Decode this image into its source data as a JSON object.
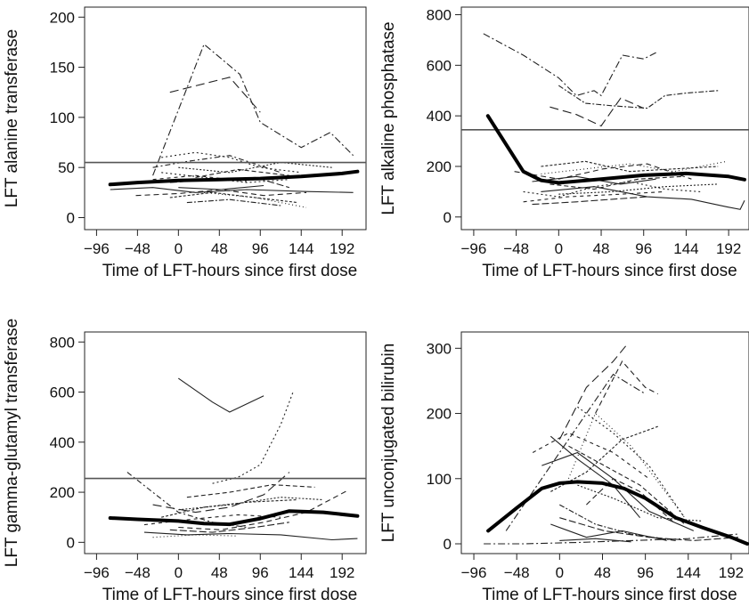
{
  "chart_data": [
    {
      "type": "line",
      "xlabel": "Time of LFT-hours since first dose",
      "ylabel": "LFT alanine transferase",
      "xlim": [
        -110,
        220
      ],
      "ylim": [
        -12,
        210
      ],
      "xticks": [
        -96,
        -48,
        0,
        48,
        96,
        144,
        192
      ],
      "yticks": [
        0,
        50,
        100,
        150,
        200
      ],
      "reference_line": 55,
      "summary_series": {
        "x": [
          -80,
          -48,
          0,
          48,
          96,
          144,
          192,
          210
        ],
        "y": [
          33,
          35,
          37,
          38,
          39,
          41,
          44,
          46
        ]
      },
      "individual_series": [
        {
          "dash": "8,3,2,3",
          "x": [
            -30,
            30,
            72,
            96,
            144,
            178,
            205
          ],
          "y": [
            42,
            173,
            143,
            95,
            70,
            85,
            62
          ]
        },
        {
          "dash": "10,5",
          "x": [
            -10,
            60,
            96
          ],
          "y": [
            125,
            140,
            105
          ]
        },
        {
          "dash": "2,3",
          "x": [
            -20,
            20,
            60,
            96,
            144
          ],
          "y": [
            60,
            65,
            60,
            50,
            45
          ]
        },
        {
          "dash": "6,3,2,3",
          "x": [
            -30,
            10,
            60,
            120
          ],
          "y": [
            50,
            56,
            62,
            45
          ]
        },
        {
          "dash": "",
          "x": [
            -80,
            -30,
            20,
            80,
            150,
            205
          ],
          "y": [
            28,
            30,
            25,
            28,
            26,
            25
          ]
        },
        {
          "dash": "6,4",
          "x": [
            -50,
            0,
            50,
            100,
            150
          ],
          "y": [
            22,
            24,
            28,
            22,
            25
          ]
        },
        {
          "dash": "2,3",
          "x": [
            -20,
            30,
            80,
            130
          ],
          "y": [
            45,
            40,
            35,
            38
          ]
        },
        {
          "dash": "8,3",
          "x": [
            -10,
            40,
            90,
            130
          ],
          "y": [
            35,
            38,
            40,
            30
          ]
        },
        {
          "dash": "",
          "x": [
            0,
            50,
            100
          ],
          "y": [
            30,
            28,
            32
          ]
        },
        {
          "dash": "3,2",
          "x": [
            -10,
            40,
            90,
            140
          ],
          "y": [
            20,
            25,
            20,
            15
          ]
        },
        {
          "dash": "6,2,2,2",
          "x": [
            10,
            60,
            120
          ],
          "y": [
            15,
            18,
            12
          ]
        },
        {
          "dash": "5,3",
          "x": [
            20,
            70,
            130
          ],
          "y": [
            40,
            48,
            42
          ]
        },
        {
          "dash": "2,2",
          "x": [
            0,
            60,
            120,
            180
          ],
          "y": [
            50,
            45,
            55,
            50
          ]
        },
        {
          "dash": "4,4",
          "x": [
            -30,
            20,
            80
          ],
          "y": [
            38,
            42,
            36
          ]
        },
        {
          "dash": "1,3",
          "x": [
            30,
            90,
            150
          ],
          "y": [
            25,
            20,
            10
          ]
        }
      ]
    },
    {
      "type": "line",
      "xlabel": "Time of LFT-hours since first dose",
      "ylabel": "LFT alkaline phosphatase",
      "xlim": [
        -110,
        215
      ],
      "ylim": [
        -50,
        830
      ],
      "xticks": [
        -96,
        -48,
        0,
        48,
        96,
        144,
        192
      ],
      "yticks": [
        0,
        200,
        400,
        600,
        800
      ],
      "reference_line": 345,
      "summary_series": {
        "x": [
          -80,
          -60,
          -40,
          -20,
          0,
          48,
          96,
          144,
          192,
          210
        ],
        "y": [
          400,
          290,
          180,
          145,
          135,
          150,
          165,
          172,
          160,
          148
        ]
      },
      "individual_series": [
        {
          "dash": "8,3,2,3",
          "x": [
            -85,
            -40,
            0,
            20,
            40,
            48,
            72,
            96,
            110
          ],
          "y": [
            725,
            640,
            550,
            480,
            500,
            480,
            640,
            625,
            650
          ]
        },
        {
          "dash": "10,5",
          "x": [
            -10,
            20,
            48,
            70,
            96
          ],
          "y": [
            435,
            405,
            360,
            470,
            430
          ]
        },
        {
          "dash": "6,2,2,2",
          "x": [
            0,
            30,
            60,
            100,
            120,
            144,
            180
          ],
          "y": [
            520,
            450,
            440,
            430,
            480,
            490,
            500
          ]
        },
        {
          "dash": "",
          "x": [
            -20,
            40,
            100,
            150,
            190,
            205,
            210
          ],
          "y": [
            100,
            120,
            80,
            70,
            40,
            30,
            65
          ]
        },
        {
          "dash": "6,4",
          "x": [
            -50,
            0,
            50,
            100,
            150
          ],
          "y": [
            180,
            150,
            190,
            210,
            150
          ]
        },
        {
          "dash": "2,3",
          "x": [
            -40,
            0,
            40,
            80,
            120,
            160
          ],
          "y": [
            100,
            80,
            120,
            140,
            110,
            100
          ]
        },
        {
          "dash": "8,3",
          "x": [
            -30,
            20,
            60,
            100
          ],
          "y": [
            50,
            60,
            70,
            80
          ]
        },
        {
          "dash": "3,2",
          "x": [
            -20,
            30,
            80,
            130,
            180
          ],
          "y": [
            200,
            220,
            180,
            190,
            200
          ]
        },
        {
          "dash": "5,3",
          "x": [
            -10,
            40,
            90,
            140
          ],
          "y": [
            130,
            110,
            150,
            160
          ]
        },
        {
          "dash": "2,2",
          "x": [
            0,
            60,
            120,
            180
          ],
          "y": [
            90,
            100,
            120,
            130
          ]
        },
        {
          "dash": "4,4",
          "x": [
            -40,
            10,
            70,
            120
          ],
          "y": [
            60,
            80,
            90,
            100
          ]
        },
        {
          "dash": "",
          "x": [
            -30,
            20,
            70,
            110
          ],
          "y": [
            140,
            160,
            130,
            150
          ]
        },
        {
          "dash": "1,3",
          "x": [
            -20,
            30,
            80,
            130,
            190
          ],
          "y": [
            170,
            190,
            210,
            180,
            220
          ]
        }
      ]
    },
    {
      "type": "line",
      "xlabel": "Time of LFT-hours since first dose",
      "ylabel": "LFT gamma-glutamyl transferase",
      "xlim": [
        -110,
        220
      ],
      "ylim": [
        -45,
        840
      ],
      "xticks": [
        -96,
        -48,
        0,
        48,
        96,
        144,
        192
      ],
      "yticks": [
        0,
        200,
        400,
        600,
        800
      ],
      "reference_line": 255,
      "summary_series": {
        "x": [
          -80,
          -48,
          0,
          30,
          60,
          96,
          130,
          170,
          210
        ],
        "y": [
          97,
          92,
          85,
          75,
          72,
          95,
          125,
          120,
          105
        ]
      },
      "individual_series": [
        {
          "dash": "",
          "x": [
            0,
            40,
            60,
            100
          ],
          "y": [
            655,
            560,
            520,
            585
          ]
        },
        {
          "dash": "2,3",
          "x": [
            40,
            70,
            96,
            120,
            135
          ],
          "y": [
            235,
            260,
            310,
            470,
            605
          ]
        },
        {
          "dash": "6,3,2,3",
          "x": [
            -60,
            -30,
            0,
            40,
            80
          ],
          "y": [
            280,
            200,
            120,
            80,
            60
          ]
        },
        {
          "dash": "10,5",
          "x": [
            -30,
            20,
            60,
            100,
            130
          ],
          "y": [
            150,
            120,
            140,
            190,
            280
          ]
        },
        {
          "dash": "6,4",
          "x": [
            0,
            50,
            100,
            150,
            200
          ],
          "y": [
            60,
            50,
            80,
            120,
            210
          ]
        },
        {
          "dash": "",
          "x": [
            -40,
            10,
            60,
            120,
            180,
            210
          ],
          "y": [
            40,
            30,
            35,
            30,
            10,
            15
          ]
        },
        {
          "dash": "3,2",
          "x": [
            -20,
            30,
            80,
            140
          ],
          "y": [
            100,
            140,
            160,
            170
          ]
        },
        {
          "dash": "8,3",
          "x": [
            -10,
            40,
            90,
            130
          ],
          "y": [
            50,
            40,
            60,
            80
          ]
        },
        {
          "dash": "2,2",
          "x": [
            0,
            60,
            120,
            170
          ],
          "y": [
            130,
            150,
            180,
            170
          ]
        },
        {
          "dash": "4,4",
          "x": [
            -40,
            10,
            70,
            120
          ],
          "y": [
            70,
            90,
            110,
            100
          ]
        },
        {
          "dash": "1,3",
          "x": [
            -30,
            20,
            70
          ],
          "y": [
            20,
            30,
            25
          ]
        },
        {
          "dash": "5,3",
          "x": [
            10,
            60,
            110,
            160
          ],
          "y": [
            180,
            200,
            230,
            220
          ]
        }
      ]
    },
    {
      "type": "line",
      "xlabel": "Time of LFT-hours since first dose",
      "ylabel": "LFT unconjugated bilirubin",
      "xlim": [
        -110,
        212
      ],
      "ylim": [
        -15,
        325
      ],
      "xticks": [
        -96,
        -48,
        0,
        48,
        96,
        144,
        192
      ],
      "yticks": [
        0,
        100,
        200,
        300
      ],
      "summary_series": {
        "x": [
          -80,
          -48,
          -20,
          0,
          20,
          48,
          72,
          96,
          130,
          160,
          192,
          210
        ],
        "y": [
          20,
          55,
          85,
          93,
          95,
          93,
          85,
          70,
          40,
          25,
          10,
          0
        ]
      },
      "individual_series": [
        {
          "dash": "10,5",
          "x": [
            0,
            30,
            60,
            75
          ],
          "y": [
            160,
            240,
            280,
            305
          ]
        },
        {
          "dash": "8,3,2,3",
          "x": [
            -60,
            -20,
            20,
            60,
            96
          ],
          "y": [
            20,
            100,
            180,
            260,
            230
          ]
        },
        {
          "dash": "6,4",
          "x": [
            40,
            70,
            96,
            110
          ],
          "y": [
            200,
            280,
            240,
            230
          ]
        },
        {
          "dash": "",
          "x": [
            -10,
            20,
            60,
            90
          ],
          "y": [
            165,
            130,
            90,
            40
          ]
        },
        {
          "dash": "2,3",
          "x": [
            20,
            60,
            100,
            140
          ],
          "y": [
            210,
            170,
            120,
            40
          ]
        },
        {
          "dash": "3,2",
          "x": [
            -10,
            30,
            70,
            110
          ],
          "y": [
            80,
            110,
            160,
            180
          ]
        },
        {
          "dash": "",
          "x": [
            -20,
            20,
            60,
            100,
            150
          ],
          "y": [
            120,
            140,
            100,
            50,
            20
          ]
        },
        {
          "dash": "6,2,2,2",
          "x": [
            0,
            40,
            80,
            130
          ],
          "y": [
            60,
            30,
            15,
            5
          ]
        },
        {
          "dash": "5,3",
          "x": [
            10,
            50,
            90,
            140
          ],
          "y": [
            150,
            120,
            90,
            30
          ]
        },
        {
          "dash": "8,3",
          "x": [
            0,
            50,
            100,
            150,
            200
          ],
          "y": [
            40,
            20,
            10,
            5,
            10
          ]
        },
        {
          "dash": "2,2",
          "x": [
            20,
            60,
            110,
            160
          ],
          "y": [
            90,
            70,
            40,
            35
          ]
        },
        {
          "dash": "",
          "x": [
            -10,
            30,
            70,
            120
          ],
          "y": [
            30,
            10,
            20,
            5
          ]
        },
        {
          "dash": "4,4",
          "x": [
            -30,
            10,
            60,
            100
          ],
          "y": [
            140,
            170,
            140,
            100
          ]
        },
        {
          "dash": "1,3",
          "x": [
            10,
            40,
            80,
            140
          ],
          "y": [
            100,
            200,
            150,
            40
          ]
        },
        {
          "dash": "6,4",
          "x": [
            30,
            60,
            90,
            130
          ],
          "y": [
            60,
            100,
            80,
            30
          ]
        },
        {
          "dash": "",
          "x": [
            0,
            40,
            80
          ],
          "y": [
            5,
            8,
            3
          ]
        },
        {
          "dash": "8,3,2,3",
          "x": [
            -85,
            -40,
            20,
            80,
            144,
            200
          ],
          "y": [
            0,
            0,
            2,
            5,
            8,
            15
          ]
        }
      ]
    }
  ]
}
